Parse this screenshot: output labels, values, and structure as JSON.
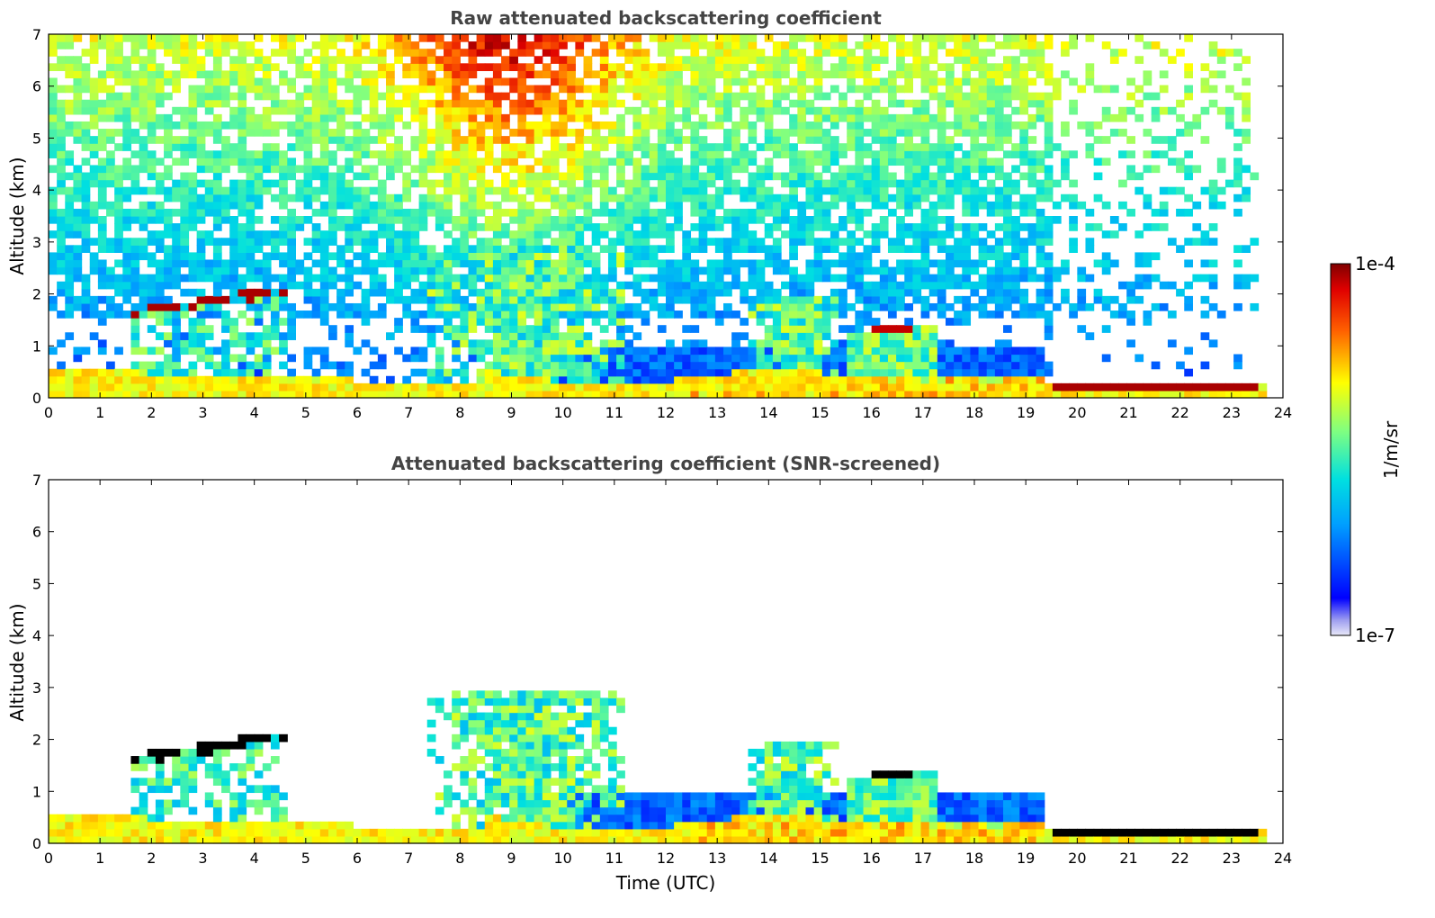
{
  "chart_data": [
    {
      "type": "heatmap",
      "title": "Raw attenuated backscattering coefficient",
      "xlabel": "",
      "ylabel": "Altitude (km)",
      "xlim": [
        0,
        24
      ],
      "ylim": [
        0,
        7
      ],
      "x_ticks": [
        "0",
        "1",
        "2",
        "3",
        "4",
        "5",
        "6",
        "7",
        "8",
        "9",
        "10",
        "11",
        "12",
        "13",
        "14",
        "15",
        "16",
        "17",
        "18",
        "19",
        "20",
        "21",
        "22",
        "23",
        "24"
      ],
      "y_ticks": [
        "0",
        "1",
        "2",
        "3",
        "4",
        "5",
        "6",
        "7"
      ],
      "data_end_time": 23.6,
      "layers": [
        {
          "t0": 0.0,
          "t1": 2.0,
          "h0": 0.55,
          "h1": 0.55,
          "value": 4.0
        },
        {
          "t0": 2.0,
          "t1": 8.5,
          "h0": 0.45,
          "h1": 0.25,
          "value": 4.0
        },
        {
          "t0": 1.6,
          "t1": 4.5,
          "h0": 1.65,
          "h1": 2.05,
          "value": 4.0
        },
        {
          "t0": 15.5,
          "t1": 17.3,
          "h0": 1.2,
          "h1": 1.4,
          "value": 4.0
        },
        {
          "t0": 19.5,
          "t1": 23.6,
          "h0": 0.2,
          "h1": 0.2,
          "value": 4.0
        }
      ]
    },
    {
      "type": "heatmap",
      "title": "Attenuated backscattering coefficient (SNR-screened)",
      "xlabel": "Time (UTC)",
      "ylabel": "Altitude (km)",
      "xlim": [
        0,
        24
      ],
      "ylim": [
        0,
        7
      ],
      "x_ticks": [
        "0",
        "1",
        "2",
        "3",
        "4",
        "5",
        "6",
        "7",
        "8",
        "9",
        "10",
        "11",
        "12",
        "13",
        "14",
        "15",
        "16",
        "17",
        "18",
        "19",
        "20",
        "21",
        "22",
        "23",
        "24"
      ],
      "y_ticks": [
        "0",
        "1",
        "2",
        "3",
        "4",
        "5",
        "6",
        "7"
      ],
      "data_end_time": 23.6
    }
  ],
  "colorbar": {
    "label": "1/m/sr",
    "min_label": "1e-7",
    "max_label": "1e-4",
    "min": 1e-07,
    "max": 0.0001,
    "scale": "log",
    "colormap": "jet"
  }
}
